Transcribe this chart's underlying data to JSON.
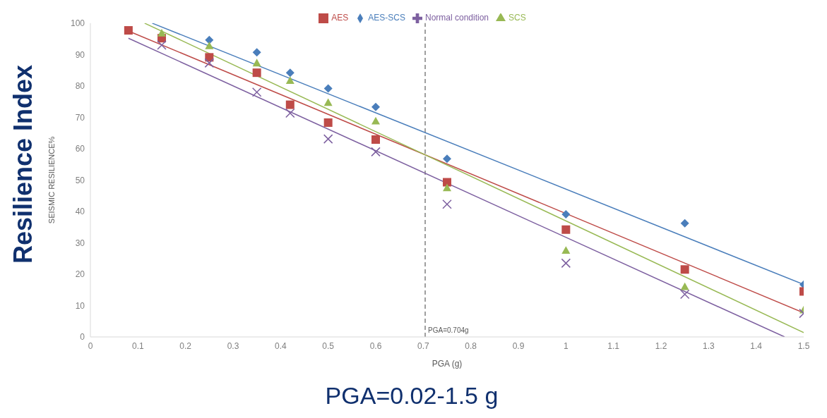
{
  "chart_data": {
    "type": "scatter",
    "xlabel": "PGA (g)",
    "ylabel": "SEISMIC RESILIENCE%",
    "annotations": [
      "Resilience Index",
      "PGA=0.02-1.5 g"
    ],
    "xlim": [
      0,
      1.5
    ],
    "xticks": [
      0,
      0.1,
      0.2,
      0.3,
      0.4,
      0.5,
      0.6,
      0.7,
      0.8,
      0.9,
      1,
      1.1,
      1.2,
      1.3,
      1.4,
      1.5
    ],
    "ylim": [
      0,
      100
    ],
    "yticks": [
      0,
      10,
      20,
      30,
      40,
      50,
      60,
      70,
      80,
      90,
      100
    ],
    "grid": false,
    "legend": "top",
    "ref_lines": [
      {
        "axis": "x",
        "value": 0.704,
        "label": "PGA=0.704g",
        "color": "#808080",
        "line_style": "dashed"
      }
    ],
    "series": [
      {
        "name": "AES-SCS",
        "color": "#4a7ebb",
        "marker": "diamond",
        "x": [
          0.25,
          0.35,
          0.42,
          0.5,
          0.6,
          0.75,
          1,
          1.25,
          1.5
        ],
        "values": [
          94.6,
          90.7,
          84.2,
          79.2,
          73.3,
          56.8,
          39.1,
          36.2,
          16.7
        ]
      },
      {
        "name": "AES",
        "color": "#be4b48",
        "marker": "square",
        "x": [
          0.08,
          0.15,
          0.25,
          0.35,
          0.42,
          0.5,
          0.6,
          0.75,
          1,
          1.25,
          1.5
        ],
        "values": [
          97.7,
          95.2,
          89.1,
          84.2,
          74,
          68.3,
          62.9,
          49.3,
          34.2,
          21.5,
          14.5
        ]
      },
      {
        "name": "SCS",
        "color": "#98b954",
        "marker": "triangle",
        "x": [
          0.15,
          0.25,
          0.35,
          0.42,
          0.5,
          0.6,
          0.75,
          1,
          1.25,
          1.5
        ],
        "values": [
          96.8,
          92.8,
          87.3,
          81.7,
          74.7,
          68.8,
          47.5,
          27.6,
          16,
          8.6
        ]
      },
      {
        "name": "Normal condition",
        "color": "#7d60a0",
        "marker": "cross",
        "x": [
          0.15,
          0.25,
          0.35,
          0.42,
          0.5,
          0.6,
          0.75,
          1,
          1.25,
          1.5
        ],
        "values": [
          93,
          87.3,
          78,
          71.3,
          63.1,
          59,
          42.3,
          23.5,
          13.6,
          7.5
        ]
      },
      {
        "type": "line",
        "color": "#4a7ebb",
        "marker": "none",
        "x": [
          0.13,
          1.5
        ],
        "values": [
          100,
          16.7
        ]
      },
      {
        "type": "line",
        "color": "#be4b48",
        "marker": "none",
        "x": [
          0.08,
          1.5
        ],
        "values": [
          97.5,
          7.7
        ]
      },
      {
        "type": "line",
        "color": "#98b954",
        "marker": "none",
        "x": [
          0.114,
          1.5
        ],
        "values": [
          100,
          1.4
        ]
      },
      {
        "type": "line",
        "color": "#7d60a0",
        "marker": "none",
        "x": [
          0.08,
          1.46
        ],
        "values": [
          95.2,
          0
        ]
      }
    ]
  }
}
